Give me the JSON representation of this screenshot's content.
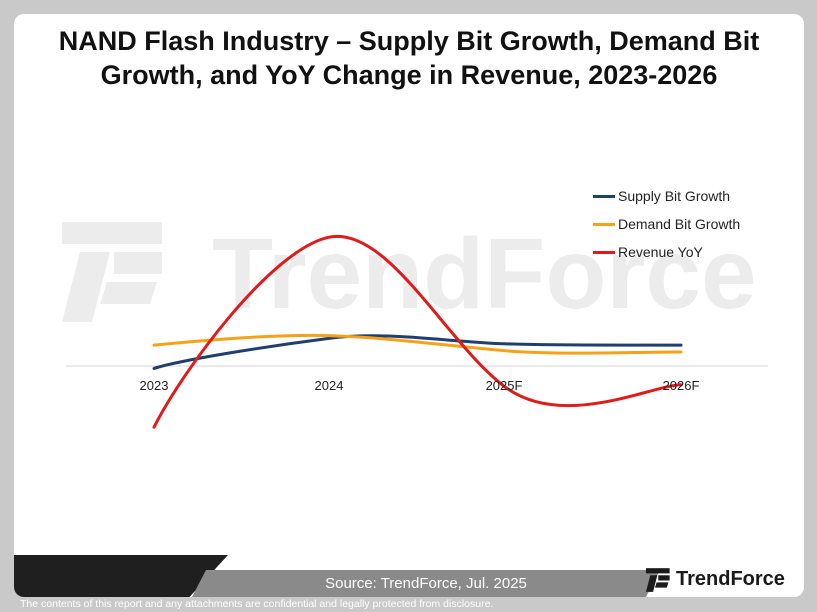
{
  "chart_data": {
    "type": "line",
    "title": "NAND Flash Industry – Supply Bit Growth, Demand Bit Growth, and YoY Change in Revenue, 2023-2026",
    "title_lines": [
      "NAND Flash Industry – Supply Bit Growth, Demand Bit",
      "Growth, and YoY Change in Revenue, 2023-2026"
    ],
    "categories": [
      "2023",
      "2024",
      "2025F",
      "2026F"
    ],
    "series": [
      {
        "name": "Supply Bit Growth",
        "color": "#1f3f6e",
        "values": [
          -2,
          20,
          16,
          15
        ]
      },
      {
        "name": "Demand Bit Growth",
        "color": "#f5a21b",
        "values": [
          15,
          22,
          11,
          10
        ]
      },
      {
        "name": "Revenue YoY",
        "color": "#e01b1b",
        "values": [
          -45,
          94,
          -15,
          -14
        ]
      }
    ],
    "ylim": [
      -50,
      100
    ],
    "smooth": true,
    "grid": false,
    "legend_position": "right"
  },
  "footer": {
    "source": "Source: TrendForce, Jul. 2025",
    "brand": "TrendForce",
    "disclaimer": "The contents of this report and any attachments are confidential and legally protected from disclosure."
  },
  "watermark": {
    "text": "TrendForce"
  }
}
